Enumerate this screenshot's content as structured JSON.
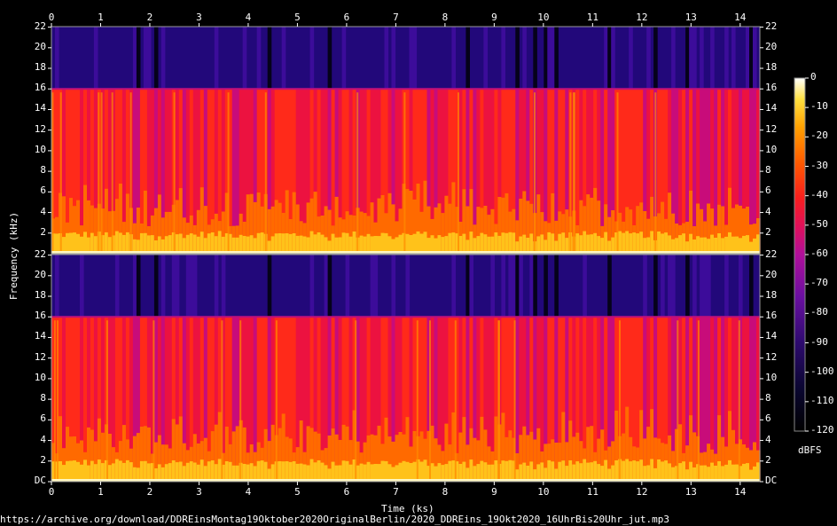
{
  "chart_data": {
    "type": "heatmap",
    "xlabel": "Time (ks)",
    "ylabel": "Frequency (kHz)",
    "x_ticks": [
      "0",
      "1",
      "2",
      "3",
      "4",
      "5",
      "6",
      "7",
      "8",
      "9",
      "10",
      "11",
      "12",
      "13",
      "14"
    ],
    "xlim": [
      0,
      14.4
    ],
    "channels": [
      {
        "ylim": [
          0,
          22.05
        ],
        "y_ticks": [
          "2",
          "4",
          "6",
          "8",
          "10",
          "12",
          "14",
          "16",
          "18",
          "20",
          "22"
        ]
      },
      {
        "ylim": [
          0,
          22.05
        ],
        "y_ticks": [
          "DC",
          "2",
          "4",
          "6",
          "8",
          "10",
          "12",
          "14",
          "16",
          "18",
          "20",
          "22"
        ]
      }
    ],
    "colorbar": {
      "label": "dBFS",
      "range": [
        -120,
        0
      ],
      "ticks": [
        "0",
        "-10",
        "-20",
        "-30",
        "-40",
        "-50",
        "-60",
        "-70",
        "-80",
        "-90",
        "-100",
        "-110",
        "-120"
      ]
    },
    "lowpass_cutoff_khz": 16,
    "source": "https://archive.org/download/DDREinsMontag19Oktober2020OriginalBerlin/2020_DDREins_19Okt2020_16UhrBis20Uhr_jut.mp3"
  }
}
